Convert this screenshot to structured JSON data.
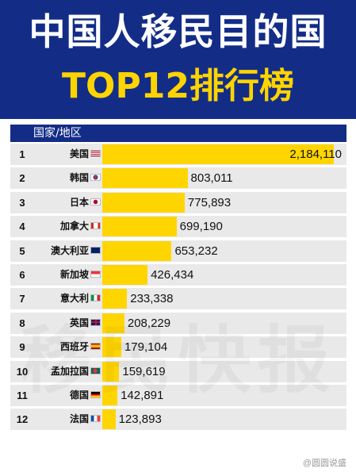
{
  "title_line1": "中国人移民目的国",
  "title_line2": "TOP12排行榜",
  "watermark": "移民快报",
  "source_label": "@圆圆说盛",
  "colors": {
    "header": "#132d87",
    "bar": "#ffd500",
    "row_bg": "#e9e9e9",
    "title_accent": "#ffd400"
  },
  "chart_data": {
    "type": "bar",
    "orientation": "horizontal",
    "column_header": "国家/地区",
    "categories": [
      "美国",
      "韩国",
      "日本",
      "加拿大",
      "澳大利亚",
      "新加坡",
      "意大利",
      "英国",
      "西班牙",
      "孟加拉国",
      "德国",
      "法国"
    ],
    "ranks": [
      "1",
      "2",
      "3",
      "4",
      "5",
      "6",
      "7",
      "8",
      "9",
      "10",
      "11",
      "12"
    ],
    "values": [
      2184110,
      803011,
      775893,
      699190,
      653232,
      426434,
      233338,
      208229,
      179104,
      159619,
      142891,
      123893
    ],
    "value_labels": [
      "2,184,110",
      "803,011",
      "775,893",
      "699,190",
      "653,232",
      "426,434",
      "233,338",
      "208,229",
      "179,104",
      "159,619",
      "142,891",
      "123,893"
    ],
    "flags": [
      "us",
      "kr",
      "jp",
      "ca",
      "au",
      "sg",
      "it",
      "gb",
      "es",
      "bd",
      "de",
      "fr"
    ],
    "xlim": [
      0,
      2300000
    ]
  }
}
